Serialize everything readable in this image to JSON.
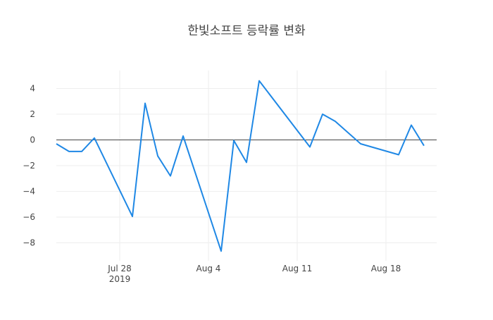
{
  "chart_data": {
    "type": "line",
    "title": "한빛소프트 등락률 변화",
    "xlabel": "",
    "ylabel": "",
    "x_tick_labels": [
      {
        "date": "2019-07-28",
        "label": "Jul 28",
        "sublabel": "2019"
      },
      {
        "date": "2019-08-04",
        "label": "Aug 4",
        "sublabel": ""
      },
      {
        "date": "2019-08-11",
        "label": "Aug 11",
        "sublabel": ""
      },
      {
        "date": "2019-08-18",
        "label": "Aug 18",
        "sublabel": ""
      }
    ],
    "y_ticks": [
      4,
      2,
      0,
      -2,
      -4,
      -6,
      -8
    ],
    "y_tick_labels": [
      "4",
      "2",
      "0",
      "−2",
      "−4",
      "−6",
      "−8"
    ],
    "xlim": [
      "2019-07-23",
      "2019-08-22"
    ],
    "ylim": [
      -9.4,
      5.4
    ],
    "grid": true,
    "zero_line": true,
    "series": [
      {
        "color": "#1f88e5",
        "x": [
          "2019-07-23",
          "2019-07-24",
          "2019-07-25",
          "2019-07-26",
          "2019-07-29",
          "2019-07-30",
          "2019-07-31",
          "2019-08-01",
          "2019-08-02",
          "2019-08-05",
          "2019-08-06",
          "2019-08-07",
          "2019-08-08",
          "2019-08-12",
          "2019-08-13",
          "2019-08-14",
          "2019-08-16",
          "2019-08-19",
          "2019-08-20",
          "2019-08-21"
        ],
        "y": [
          -0.3,
          -0.9,
          -0.9,
          0.15,
          -5.95,
          2.85,
          -1.25,
          -2.8,
          0.3,
          -8.65,
          -0.05,
          -1.75,
          4.6,
          -0.55,
          2.0,
          1.45,
          -0.3,
          -1.15,
          1.15,
          -0.45
        ]
      }
    ]
  }
}
